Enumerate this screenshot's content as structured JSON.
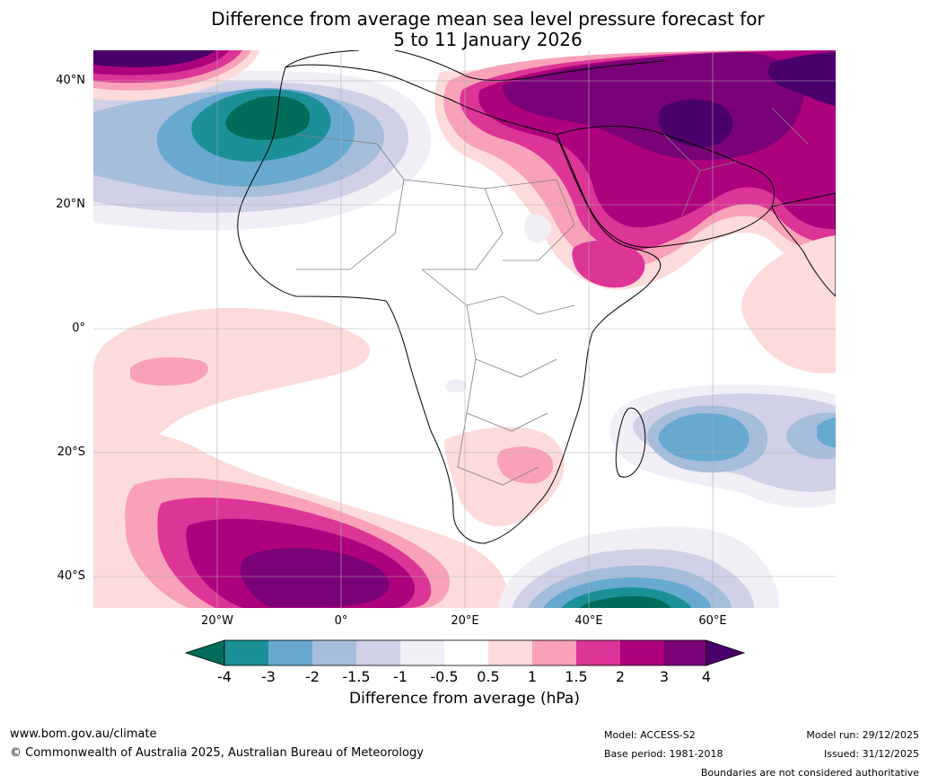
{
  "title": {
    "line1": "Difference from average mean sea level pressure forecast for",
    "line2": "5 to 11 January 2026"
  },
  "axes": {
    "lat_labels": [
      "40°N",
      "20°N",
      "0°",
      "20°S",
      "40°S"
    ],
    "lon_labels": [
      "20°W",
      "0°",
      "20°E",
      "40°E",
      "60°E"
    ]
  },
  "colorbar": {
    "label": "Difference from average (hPa)",
    "ticks": [
      "-4",
      "-3",
      "-2",
      "-1.5",
      "-1",
      "-0.5",
      "0.5",
      "1",
      "1.5",
      "2",
      "3",
      "4"
    ],
    "colors": {
      "below_min": "#016c59",
      "bins": [
        "#1b9096",
        "#67a9cf",
        "#a6bddb",
        "#d0d1e6",
        "#f1eef6",
        "#ffffff",
        "#fddbdb",
        "#f8a1b8",
        "#dd3497",
        "#ae017e",
        "#7a0177"
      ],
      "above_max": "#49006a"
    }
  },
  "footer": {
    "website": "www.bom.gov.au/climate",
    "copyright": "© Commonwealth of Australia 2025, Australian Bureau of Meteorology",
    "model": "Model: ACCESS-S2",
    "base_period": "Base period: 1981-2018",
    "model_run": "Model run: 29/12/2025",
    "issued": "Issued: 31/12/2025",
    "disclaimer": "Boundaries are not considered authoritative"
  }
}
